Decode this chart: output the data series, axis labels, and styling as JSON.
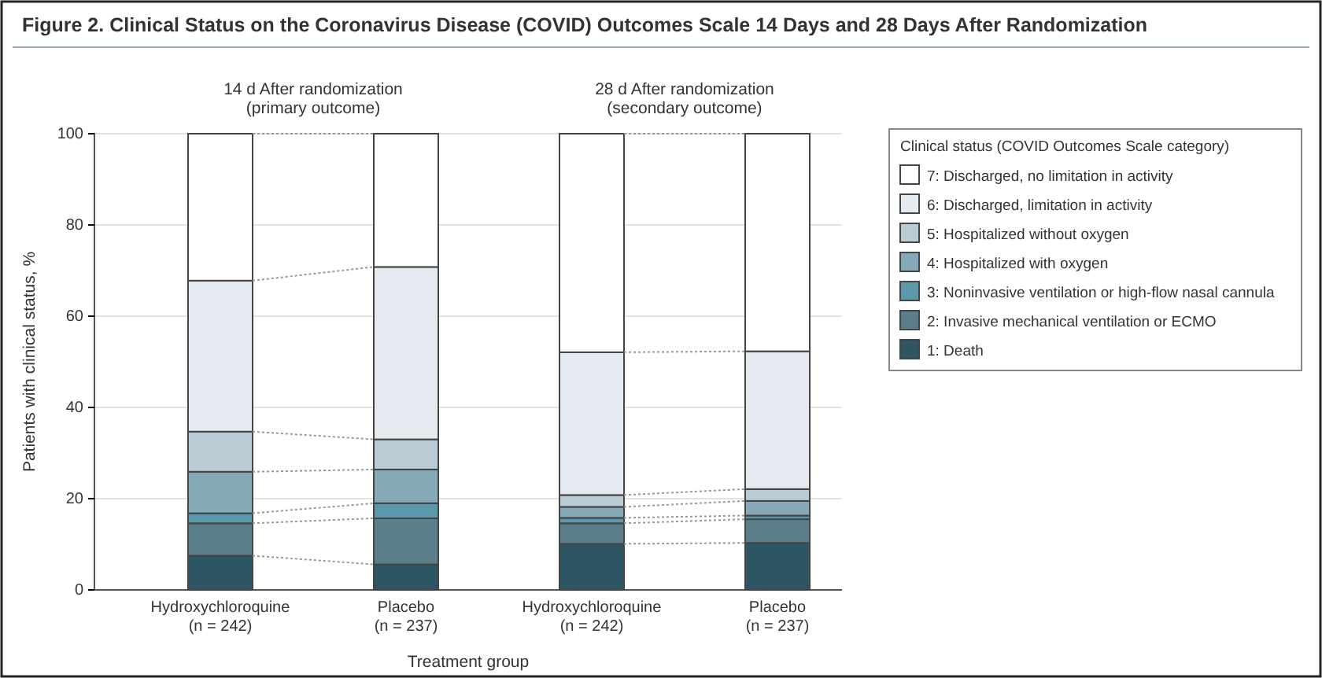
{
  "chart_data": {
    "type": "bar",
    "stacked": true,
    "title": "Figure 2. Clinical Status on the Coronavirus Disease (COVID) Outcomes Scale 14 Days and 28 Days After Randomization",
    "categories": [
      "Hydroxychloroquine\n(n = 242)",
      "Placebo\n(n = 237)",
      "Hydroxychloroquine\n(n = 242)",
      "Placebo\n(n = 237)"
    ],
    "xlabel": "Treatment group",
    "ylabel": "Patients with clinical status, %",
    "ylim": [
      0,
      100
    ],
    "yticks": [
      0,
      20,
      40,
      60,
      80,
      100
    ],
    "grid": "y",
    "legend": "right",
    "legend_title": "Clinical status (COVID Outcomes Scale category)",
    "annotations": [
      "14 d After randomization\n(primary outcome)",
      "28 d After randomization\n(secondary outcome)"
    ],
    "series": [
      {
        "name": "1: Death",
        "color": "#2e5563",
        "values": [
          7.5,
          5.6,
          10.1,
          10.3
        ]
      },
      {
        "name": "2: Invasive mechanical ventilation or ECMO",
        "color": "#5b7f8a",
        "values": [
          7.1,
          10.1,
          4.5,
          5.2
        ]
      },
      {
        "name": "3: Noninvasive ventilation or high-flow nasal cannula",
        "color": "#5b98aa",
        "values": [
          2.2,
          3.3,
          1.2,
          0.8
        ]
      },
      {
        "name": "4: Hospitalized with oxygen",
        "color": "#86a9b7",
        "values": [
          9.1,
          7.4,
          2.4,
          3.2
        ]
      },
      {
        "name": "5: Hospitalized without oxygen",
        "color": "#b9ccd6",
        "values": [
          8.8,
          6.6,
          2.6,
          2.6
        ]
      },
      {
        "name": "6: Discharged, limitation in activity",
        "color": "#e4eaef",
        "values": [
          33.1,
          37.8,
          31.3,
          30.2
        ]
      },
      {
        "name": "7: Discharged, no limitation in activity",
        "color": "#ffffff",
        "values": [
          32.2,
          29.2,
          47.9,
          47.7
        ]
      }
    ]
  }
}
